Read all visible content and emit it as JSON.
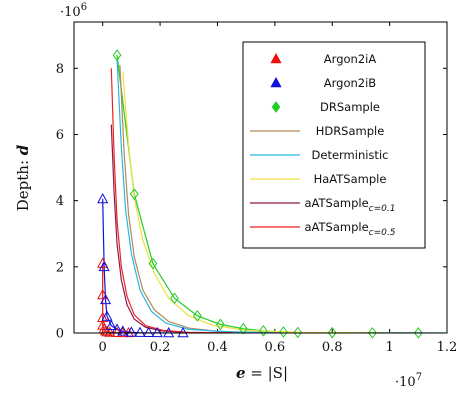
{
  "chart_data": {
    "type": "line",
    "xlabel": {
      "var": "e",
      "rest": " = |S|"
    },
    "ylabel": {
      "text": "Depth: ",
      "var": "d"
    },
    "x_multiplier": "·10",
    "x_multiplier_exp": "7",
    "y_multiplier": "·10",
    "y_multiplier_exp": "6",
    "xlim": [
      -1000000,
      12000000
    ],
    "ylim": [
      0,
      9400000
    ],
    "x_ticks": [
      0,
      2000000,
      4000000,
      6000000,
      8000000,
      10000000,
      12000000
    ],
    "x_tick_labels": [
      "0",
      "0.2",
      "0.4",
      "0.6",
      "0.8",
      "1",
      "1.2"
    ],
    "y_ticks": [
      0,
      2000000,
      4000000,
      6000000,
      8000000
    ],
    "y_tick_labels": [
      "0",
      "2",
      "4",
      "6",
      "8"
    ],
    "legend_position": "top-right",
    "series": [
      {
        "name": "Argon2iA",
        "kind": "marker",
        "marker": "triangle",
        "color": "#ee1111",
        "points": [
          [
            0,
            2100000
          ],
          [
            0,
            1150000
          ],
          [
            0,
            460000
          ],
          [
            0,
            230000
          ],
          [
            50000,
            120000
          ],
          [
            100000,
            60000
          ],
          [
            150000,
            30000
          ],
          [
            250000,
            15000
          ],
          [
            500000,
            8000
          ],
          [
            700000,
            4000
          ],
          [
            900000,
            2000
          ]
        ]
      },
      {
        "name": "Argon2iB",
        "kind": "marker",
        "marker": "triangle",
        "color": "#1111dd",
        "points": [
          [
            0,
            4050000
          ],
          [
            50000,
            2000000
          ],
          [
            100000,
            1000000
          ],
          [
            150000,
            500000
          ],
          [
            300000,
            220000
          ],
          [
            500000,
            110000
          ],
          [
            700000,
            50000
          ],
          [
            1000000,
            20000
          ],
          [
            1300000,
            10000
          ],
          [
            1600000,
            6000
          ],
          [
            1900000,
            3000
          ],
          [
            2300000,
            1500
          ],
          [
            2800000,
            800
          ]
        ]
      },
      {
        "name": "DRSample",
        "kind": "marker",
        "marker": "diamond",
        "color": "#22cc22",
        "points": [
          [
            500000,
            8400000
          ],
          [
            1100000,
            4200000
          ],
          [
            1750000,
            2100000
          ],
          [
            2500000,
            1050000
          ],
          [
            3300000,
            520000
          ],
          [
            4100000,
            260000
          ],
          [
            4900000,
            130000
          ],
          [
            5600000,
            65000
          ],
          [
            6300000,
            30000
          ],
          [
            6800000,
            15000
          ],
          [
            8000000,
            8000
          ],
          [
            9400000,
            4000
          ],
          [
            11000000,
            2000
          ]
        ]
      },
      {
        "name": "HDRSample",
        "kind": "line",
        "color": "#b08a55",
        "points": [
          [
            600000,
            8100000
          ],
          [
            750000,
            5400000
          ],
          [
            900000,
            3600000
          ],
          [
            1100000,
            2300000
          ],
          [
            1400000,
            1300000
          ],
          [
            1800000,
            700000
          ],
          [
            2300000,
            350000
          ],
          [
            3000000,
            150000
          ],
          [
            4000000,
            50000
          ],
          [
            5500000,
            15000
          ],
          [
            7500000,
            3000
          ]
        ]
      },
      {
        "name": "Deterministic",
        "kind": "line",
        "color": "#29b6e6",
        "points": [
          [
            500000,
            8300000
          ],
          [
            650000,
            5600000
          ],
          [
            800000,
            3700000
          ],
          [
            1000000,
            2400000
          ],
          [
            1300000,
            1300000
          ],
          [
            1700000,
            650000
          ],
          [
            2200000,
            300000
          ],
          [
            3000000,
            110000
          ],
          [
            4500000,
            30000
          ],
          [
            7000000,
            6000
          ],
          [
            12000000,
            1000
          ]
        ]
      },
      {
        "name": "HaATSample",
        "kind": "line",
        "color": "#f0e040",
        "points": [
          [
            700000,
            7900000
          ],
          [
            900000,
            5700000
          ],
          [
            1100000,
            4100000
          ],
          [
            1400000,
            2800000
          ],
          [
            1800000,
            1800000
          ],
          [
            2300000,
            1050000
          ],
          [
            3000000,
            520000
          ],
          [
            3800000,
            240000
          ],
          [
            5000000,
            80000
          ],
          [
            7000000,
            15000
          ],
          [
            10000000,
            3000
          ]
        ]
      },
      {
        "name": "aATSample",
        "name_sub": "c=0.1",
        "kind": "line",
        "color": "#8b1a4a",
        "points": [
          [
            300000,
            6300000
          ],
          [
            400000,
            4200000
          ],
          [
            500000,
            2700000
          ],
          [
            650000,
            1600000
          ],
          [
            850000,
            850000
          ],
          [
            1100000,
            420000
          ],
          [
            1500000,
            170000
          ],
          [
            2100000,
            60000
          ],
          [
            3000000,
            15000
          ],
          [
            4500000,
            3000
          ]
        ]
      },
      {
        "name": "aATSample",
        "name_sub": "c=0.5",
        "kind": "line",
        "color": "#ee2222",
        "points": [
          [
            300000,
            8000000
          ],
          [
            400000,
            5300000
          ],
          [
            500000,
            3400000
          ],
          [
            650000,
            2000000
          ],
          [
            850000,
            1100000
          ],
          [
            1100000,
            550000
          ],
          [
            1500000,
            220000
          ],
          [
            2100000,
            80000
          ],
          [
            3000000,
            20000
          ],
          [
            4500000,
            4000
          ]
        ]
      }
    ]
  }
}
